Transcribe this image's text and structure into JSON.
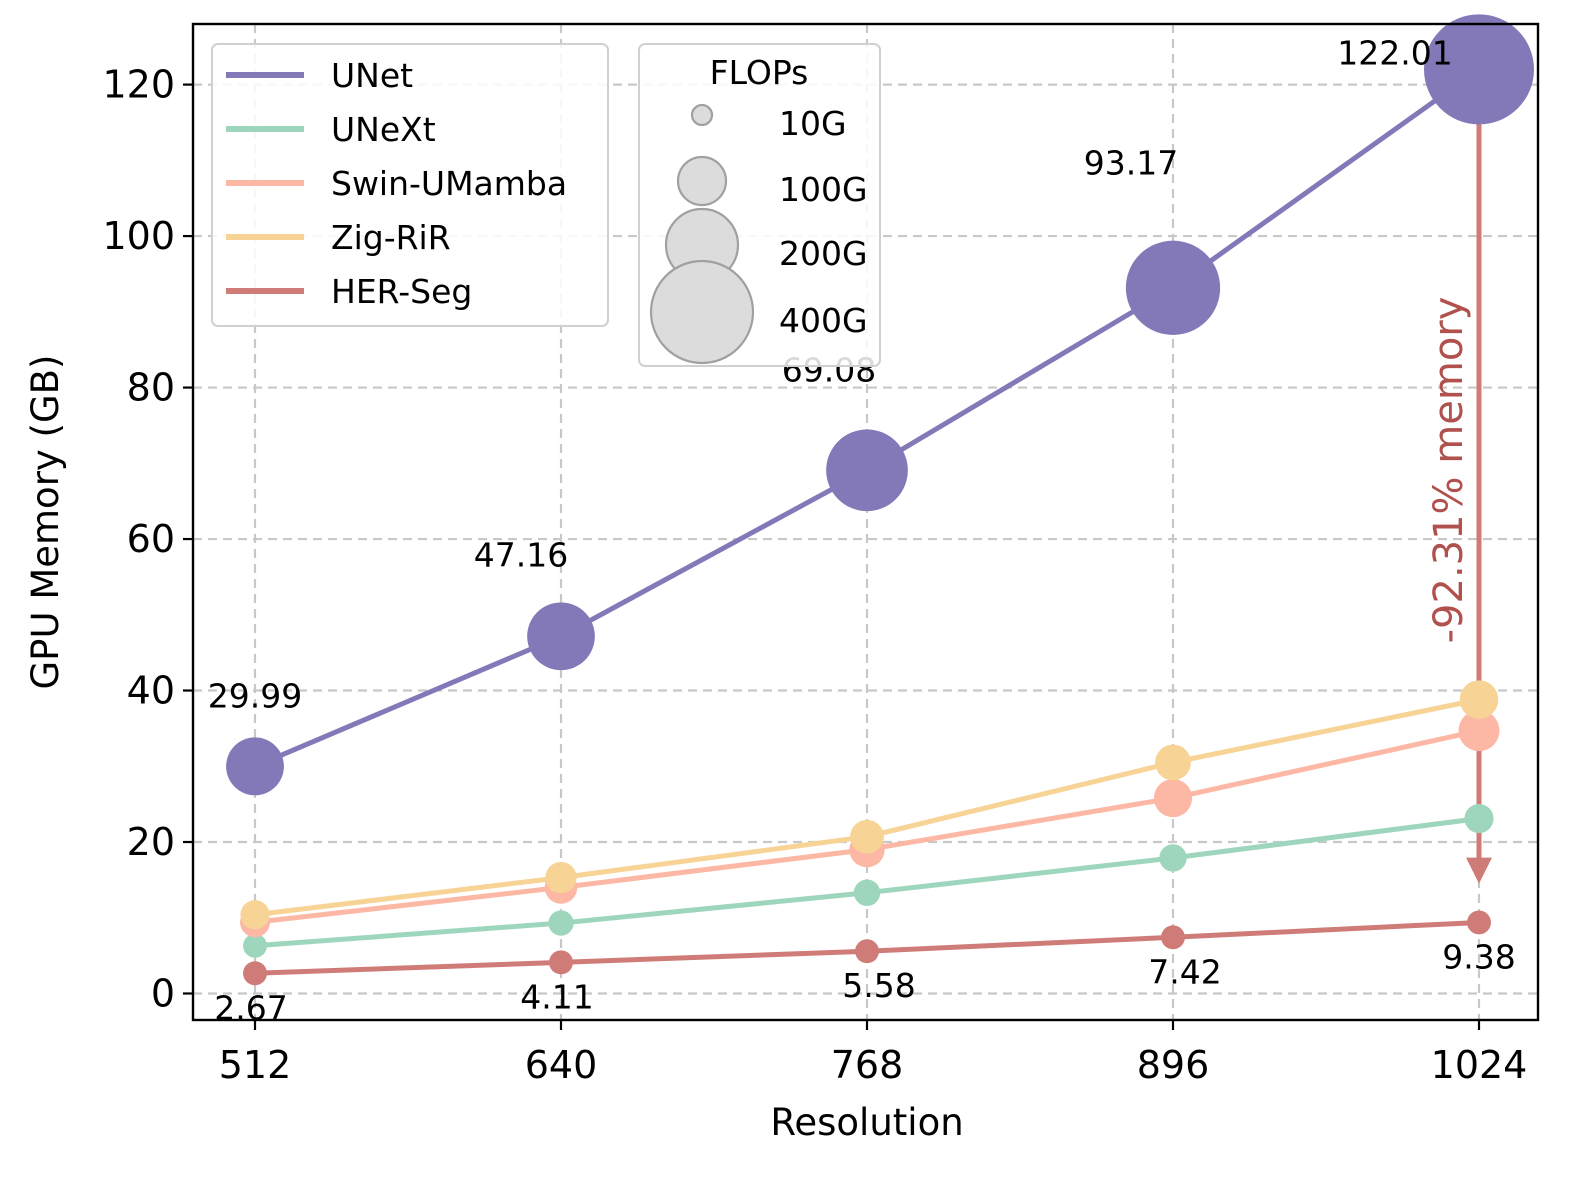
{
  "chart_data": {
    "type": "line",
    "xlabel": "Resolution",
    "ylabel": "GPU Memory (GB)",
    "x": [
      512,
      640,
      768,
      896,
      1024
    ],
    "x_tick_labels": [
      "512",
      "640",
      "768",
      "896",
      "1024"
    ],
    "ylim": [
      -3.5,
      128
    ],
    "y_ticks": [
      0,
      20,
      40,
      60,
      80,
      100,
      120
    ],
    "grid": true,
    "series": [
      {
        "name": "UNet",
        "color": "#8479b8",
        "values": [
          29.99,
          47.16,
          69.08,
          93.17,
          122.01
        ],
        "flops_g": [
          90,
          140,
          230,
          330,
          480
        ],
        "labels": [
          "29.99",
          "47.16",
          "69.08",
          "93.17",
          "122.01"
        ]
      },
      {
        "name": "UNeXt",
        "color": "#9dd6bd",
        "values": [
          6.3,
          9.3,
          13.3,
          17.9,
          23.1
        ],
        "flops_g": [
          2,
          3,
          4,
          5,
          7
        ]
      },
      {
        "name": "Swin-UMamba",
        "color": "#fcb8a4",
        "values": [
          9.4,
          14.0,
          19.0,
          25.8,
          34.7
        ],
        "flops_g": [
          8,
          12,
          17,
          23,
          30
        ]
      },
      {
        "name": "Zig-RiR",
        "color": "#f8d396",
        "values": [
          10.4,
          15.3,
          20.7,
          30.5,
          38.8
        ],
        "flops_g": [
          7,
          10,
          14,
          18,
          24
        ]
      },
      {
        "name": "HER-Seg",
        "color": "#cf7c78",
        "values": [
          2.67,
          4.11,
          5.58,
          7.42,
          9.38
        ],
        "flops_g": [
          2,
          2,
          2,
          2,
          2
        ],
        "labels": [
          "2.67",
          "4.11",
          "5.58",
          "7.42",
          "9.38"
        ]
      }
    ],
    "legend": {
      "placement": "top-left"
    },
    "size_legend": {
      "title": "FLOPs",
      "entries": [
        {
          "label": "10G",
          "flops_g": 10
        },
        {
          "label": "100G",
          "flops_g": 100
        },
        {
          "label": "200G",
          "flops_g": 200
        },
        {
          "label": "400G",
          "flops_g": 400
        }
      ],
      "color": "#dcdcdc",
      "edge_color": "#a0a0a0"
    },
    "annotation": {
      "text": "-92.31% memory",
      "color": "#b0514d",
      "arrow_color": "#cf7c78",
      "x": 1024,
      "from_y": 122.01,
      "to_y": 14.5
    }
  }
}
